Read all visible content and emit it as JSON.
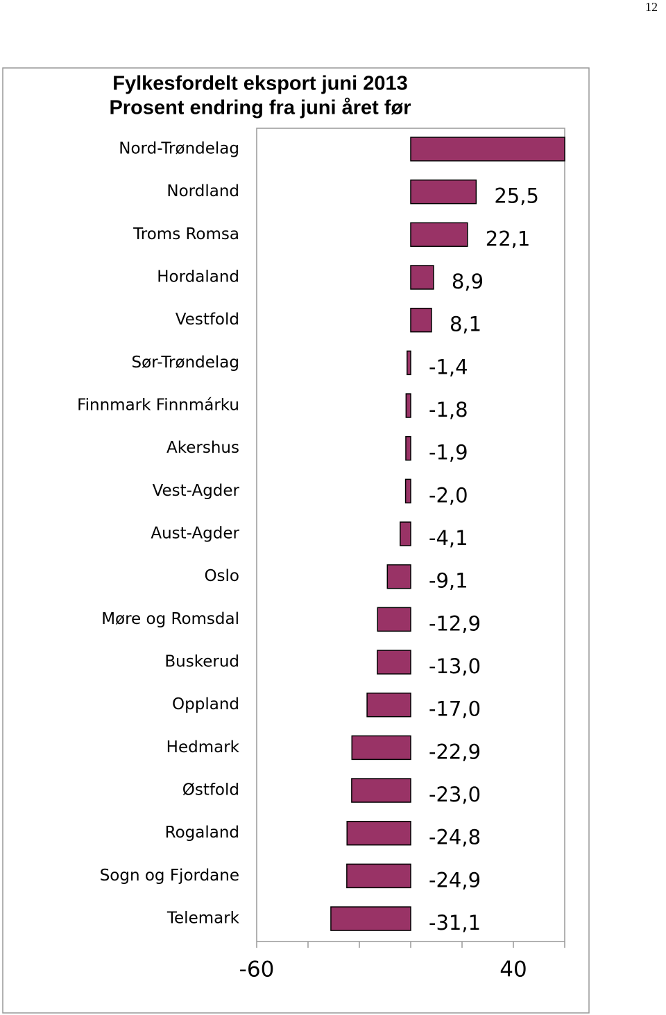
{
  "page_number": "12",
  "chart_data": {
    "type": "hbar",
    "title": "Fylkesfordelt eksport juni 2013",
    "subtitle": "Prosent endring fra juni året før",
    "categories": [
      "Nord-Trøndelag",
      "Nordland",
      "Troms Romsa",
      "Hordaland",
      "Vestfold",
      "Sør-Trøndelag",
      "Finnmark Finnmárku",
      "Akershus",
      "Vest-Agder",
      "Aust-Agder",
      "Oslo",
      "Møre og Romsdal",
      "Buskerud",
      "Oppland",
      "Hedmark",
      "Østfold",
      "Rogaland",
      "Sogn og Fjordane",
      "Telemark"
    ],
    "values": [
      60,
      25.5,
      22.1,
      8.9,
      8.1,
      -1.4,
      -1.8,
      -1.9,
      -2.0,
      -4.1,
      -9.1,
      -12.9,
      -13.0,
      -17.0,
      -22.9,
      -23.0,
      -24.8,
      -24.9,
      -31.1
    ],
    "value_labels": [
      null,
      "25,5",
      "22,1",
      "8,9",
      "8,1",
      "-1,4",
      "-1,8",
      "-1,9",
      "-2,0",
      "-4,1",
      "-9,1",
      "-12,9",
      "-13,0",
      "-17,0",
      "-22,9",
      "-23,0",
      "-24,8",
      "-24,9",
      "-31,1"
    ],
    "color": "#993366",
    "xlim": [
      -60,
      60
    ],
    "xticks": [
      -60,
      40
    ],
    "minor_xticks": [
      -40,
      -20,
      0,
      20,
      60
    ]
  }
}
